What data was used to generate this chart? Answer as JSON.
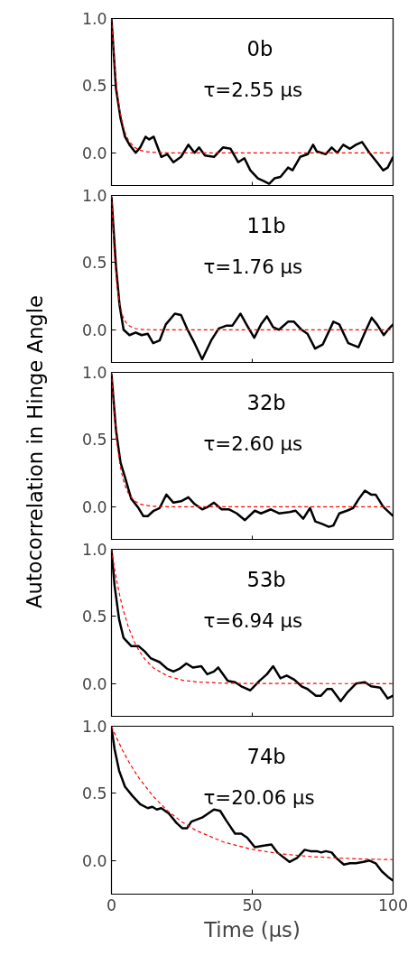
{
  "chart_data": [
    {
      "type": "line",
      "annotations": [
        "0b",
        "τ=2.55 μs"
      ],
      "xlim": [
        0,
        100
      ],
      "ylim": [
        -0.25,
        1.0
      ],
      "xticks": [
        0,
        50,
        100
      ],
      "yticks": [
        {
          "value": 0,
          "label": "0.0"
        },
        {
          "value": 0.5,
          "label": "0.5"
        },
        {
          "value": 1.0,
          "label": "1.0"
        }
      ],
      "tick_labels": "y",
      "grid": false,
      "series": [
        {
          "color": "#000000",
          "line_style": "solid",
          "x": [
            0,
            1.6,
            3.2,
            4.8,
            6.4,
            8.6,
            10.2,
            12.1,
            13.4,
            15,
            17.7,
            19.8,
            22,
            24.7,
            27.3,
            29.5,
            31.1,
            33.2,
            36.4,
            39.6,
            42.3,
            45,
            47.2,
            49.3,
            52,
            54.1,
            56,
            57.9,
            60,
            62.7,
            64.3,
            67,
            69.7,
            71.6,
            72.9,
            76.1,
            78.2,
            80.2,
            82.3,
            84.7,
            86.8,
            89,
            91.6,
            94.3,
            96.5,
            98.1,
            100
          ],
          "values": [
            1.0,
            0.48,
            0.26,
            0.12,
            0.06,
            0.0,
            0.04,
            0.12,
            0.1,
            0.12,
            -0.03,
            -0.01,
            -0.07,
            -0.03,
            0.06,
            0.0,
            0.04,
            -0.02,
            -0.03,
            0.04,
            0.03,
            -0.07,
            -0.04,
            -0.13,
            -0.19,
            -0.21,
            -0.23,
            -0.19,
            -0.18,
            -0.11,
            -0.13,
            -0.03,
            -0.01,
            0.06,
            0.01,
            -0.01,
            0.04,
            0.0,
            0.06,
            0.03,
            0.06,
            0.08,
            0.0,
            -0.07,
            -0.13,
            -0.11,
            -0.03
          ]
        },
        {
          "color": "#ff0000",
          "line_style": "dashed",
          "x": [
            0,
            1,
            2,
            3,
            4,
            5,
            6,
            8,
            10,
            12,
            15,
            20,
            100
          ],
          "values": [
            1,
            0.676,
            0.456,
            0.308,
            0.208,
            0.141,
            0.095,
            0.043,
            0.02,
            0.009,
            0.003,
            0.0,
            0.0
          ]
        }
      ]
    },
    {
      "type": "line",
      "annotations": [
        "11b",
        "τ=1.76 μs"
      ],
      "xlim": [
        0,
        100
      ],
      "ylim": [
        -0.25,
        1.0
      ],
      "xticks": [
        0,
        50,
        100
      ],
      "yticks": [
        {
          "value": 0,
          "label": "0.0"
        },
        {
          "value": 0.5,
          "label": "0.5"
        },
        {
          "value": 1.0,
          "label": "1.0"
        }
      ],
      "tick_labels": "y",
      "grid": false,
      "series": [
        {
          "color": "#000000",
          "line_style": "solid",
          "x": [
            0,
            1.6,
            2.9,
            4.3,
            6.4,
            8.6,
            10.7,
            12.9,
            14.8,
            17.1,
            19.3,
            22.5,
            24.7,
            26.8,
            29.5,
            32.2,
            35.4,
            38.1,
            40.7,
            42.9,
            45.8,
            48.2,
            50.7,
            53.1,
            55.2,
            57.4,
            59.5,
            62.7,
            64.8,
            67.5,
            69.6,
            72.3,
            75,
            78.8,
            80.9,
            84.1,
            87.7,
            90,
            92.4,
            94.3,
            96.7,
            98.6,
            100
          ],
          "values": [
            0.99,
            0.47,
            0.18,
            0.0,
            -0.04,
            -0.02,
            -0.04,
            -0.03,
            -0.1,
            -0.08,
            0.04,
            0.12,
            0.11,
            0.01,
            -0.1,
            -0.22,
            -0.08,
            0.01,
            0.03,
            0.03,
            0.12,
            0.03,
            -0.06,
            0.04,
            0.1,
            0.02,
            0.0,
            0.06,
            0.06,
            0.0,
            -0.03,
            -0.14,
            -0.11,
            0.06,
            0.04,
            -0.1,
            -0.13,
            -0.02,
            0.09,
            0.04,
            -0.04,
            0.01,
            0.04
          ]
        },
        {
          "color": "#ff0000",
          "line_style": "dashed",
          "x": [
            0,
            1,
            2,
            3,
            4,
            5,
            6,
            8,
            10,
            12,
            15,
            20,
            100
          ],
          "values": [
            1,
            0.567,
            0.321,
            0.182,
            0.103,
            0.058,
            0.033,
            0.011,
            0.003,
            0.001,
            0.0,
            0.0,
            0.0
          ]
        }
      ]
    },
    {
      "type": "line",
      "annotations": [
        "32b",
        "τ=2.60 μs"
      ],
      "ylabel": "Autocorrelation in Hinge Angle",
      "xlim": [
        0,
        100
      ],
      "ylim": [
        -0.25,
        1.0
      ],
      "xticks": [
        0,
        50,
        100
      ],
      "yticks": [
        {
          "value": 0,
          "label": "0.0"
        },
        {
          "value": 0.5,
          "label": "0.5"
        },
        {
          "value": 1.0,
          "label": "1.0"
        }
      ],
      "tick_labels": "y",
      "grid": false,
      "series": [
        {
          "color": "#000000",
          "line_style": "solid",
          "x": [
            0,
            1.6,
            3.2,
            4.8,
            7,
            9.6,
            11.3,
            12.9,
            15,
            17.1,
            19.5,
            22,
            24.7,
            27.3,
            29.5,
            32.2,
            34.3,
            36.4,
            39.1,
            41.8,
            44.5,
            47.4,
            50.9,
            53.1,
            56.6,
            59.5,
            63.2,
            65.4,
            68.1,
            70.5,
            72.4,
            75,
            77.2,
            78.8,
            80.9,
            83.6,
            85.8,
            87.9,
            90,
            92.2,
            93.8,
            96.5,
            100
          ],
          "values": [
            0.99,
            0.57,
            0.33,
            0.22,
            0.06,
            -0.01,
            -0.07,
            -0.07,
            -0.03,
            -0.01,
            0.09,
            0.03,
            0.04,
            0.07,
            0.02,
            -0.02,
            0.0,
            0.03,
            -0.02,
            -0.02,
            -0.05,
            -0.1,
            -0.03,
            -0.05,
            -0.02,
            -0.05,
            -0.04,
            -0.03,
            -0.09,
            -0.01,
            -0.11,
            -0.13,
            -0.15,
            -0.14,
            -0.05,
            -0.03,
            -0.01,
            0.06,
            0.12,
            0.09,
            0.09,
            0.0,
            -0.07
          ]
        },
        {
          "color": "#ff0000",
          "line_style": "dashed",
          "x": [
            0,
            1,
            2,
            3,
            4,
            5,
            6,
            8,
            10,
            12,
            15,
            20,
            100
          ],
          "values": [
            1,
            0.681,
            0.463,
            0.315,
            0.215,
            0.146,
            0.1,
            0.046,
            0.021,
            0.01,
            0.003,
            0.0,
            0.0
          ]
        }
      ]
    },
    {
      "type": "line",
      "annotations": [
        "53b",
        "τ=6.94 μs"
      ],
      "xlim": [
        0,
        100
      ],
      "ylim": [
        -0.25,
        1.0
      ],
      "xticks": [
        0,
        50,
        100
      ],
      "yticks": [
        {
          "value": 0,
          "label": "0.0"
        },
        {
          "value": 0.5,
          "label": "0.5"
        },
        {
          "value": 1.0,
          "label": "1.0"
        }
      ],
      "tick_labels": "y",
      "grid": false,
      "series": [
        {
          "color": "#000000",
          "line_style": "solid",
          "x": [
            0,
            1.1,
            2.7,
            4.3,
            7,
            9.6,
            11.8,
            13.9,
            17.1,
            19.8,
            22,
            24.1,
            26.6,
            28.9,
            31.9,
            34,
            36.4,
            37.9,
            41.3,
            43.9,
            46.1,
            49.3,
            52.5,
            55.2,
            57.4,
            60,
            62.2,
            64.9,
            67.5,
            69.6,
            72.6,
            74.4,
            76.6,
            78.2,
            81.4,
            83.6,
            86.8,
            90,
            92.2,
            95.4,
            98.1,
            100
          ],
          "values": [
            1.0,
            0.73,
            0.48,
            0.34,
            0.28,
            0.28,
            0.24,
            0.19,
            0.16,
            0.11,
            0.09,
            0.11,
            0.15,
            0.12,
            0.13,
            0.07,
            0.09,
            0.12,
            0.02,
            0.01,
            -0.02,
            -0.05,
            0.02,
            0.07,
            0.13,
            0.04,
            0.06,
            0.03,
            -0.02,
            -0.04,
            -0.09,
            -0.09,
            -0.04,
            -0.04,
            -0.13,
            -0.07,
            0.0,
            0.01,
            -0.02,
            -0.03,
            -0.11,
            -0.09
          ]
        },
        {
          "color": "#ff0000",
          "line_style": "dashed",
          "x": [
            0,
            1,
            2,
            3,
            4,
            6,
            8,
            10,
            12,
            15,
            20,
            25,
            30,
            40,
            50,
            100
          ],
          "values": [
            1,
            0.866,
            0.75,
            0.649,
            0.562,
            0.421,
            0.316,
            0.237,
            0.178,
            0.115,
            0.056,
            0.027,
            0.013,
            0.003,
            0.001,
            0.0
          ]
        }
      ]
    },
    {
      "type": "line",
      "annotations": [
        "74b",
        "τ=20.06 μs"
      ],
      "xlabel": "Time (μs)",
      "xlim": [
        0,
        100
      ],
      "ylim": [
        -0.25,
        1.0
      ],
      "xticks": [
        0,
        50,
        100
      ],
      "yticks": [
        {
          "value": 0,
          "label": "0.0"
        },
        {
          "value": 0.5,
          "label": "0.5"
        },
        {
          "value": 1.0,
          "label": "1.0"
        }
      ],
      "grid": false,
      "series": [
        {
          "color": "#000000",
          "line_style": "solid",
          "x": [
            0,
            1.1,
            2.7,
            4.8,
            7.5,
            10.2,
            12.9,
            14.5,
            16.1,
            17.7,
            20.4,
            23.1,
            25.2,
            26.8,
            28.4,
            32.2,
            34.3,
            36.4,
            38.6,
            40.7,
            43.9,
            46.1,
            48.2,
            50.9,
            53.6,
            56.8,
            58.9,
            63.2,
            65.9,
            68.6,
            70.7,
            72.9,
            74.5,
            76.1,
            78.2,
            79.8,
            82.5,
            84.7,
            86.8,
            89.5,
            91.6,
            93.8,
            96,
            98.1,
            100
          ],
          "values": [
            0.99,
            0.83,
            0.67,
            0.55,
            0.48,
            0.42,
            0.39,
            0.4,
            0.38,
            0.39,
            0.35,
            0.28,
            0.24,
            0.24,
            0.29,
            0.32,
            0.35,
            0.38,
            0.37,
            0.3,
            0.2,
            0.2,
            0.17,
            0.1,
            0.11,
            0.12,
            0.06,
            -0.01,
            0.02,
            0.08,
            0.07,
            0.07,
            0.06,
            0.07,
            0.06,
            0.02,
            -0.03,
            -0.02,
            -0.02,
            -0.01,
            0.0,
            -0.02,
            -0.08,
            -0.12,
            -0.15
          ]
        },
        {
          "color": "#ff0000",
          "line_style": "dashed",
          "x": [
            0,
            2,
            4,
            6,
            8,
            10,
            15,
            20,
            25,
            30,
            40,
            50,
            60,
            70,
            80,
            90,
            100
          ],
          "values": [
            1,
            0.905,
            0.819,
            0.741,
            0.671,
            0.607,
            0.474,
            0.369,
            0.288,
            0.224,
            0.136,
            0.083,
            0.05,
            0.031,
            0.019,
            0.011,
            0.007
          ]
        }
      ]
    }
  ]
}
